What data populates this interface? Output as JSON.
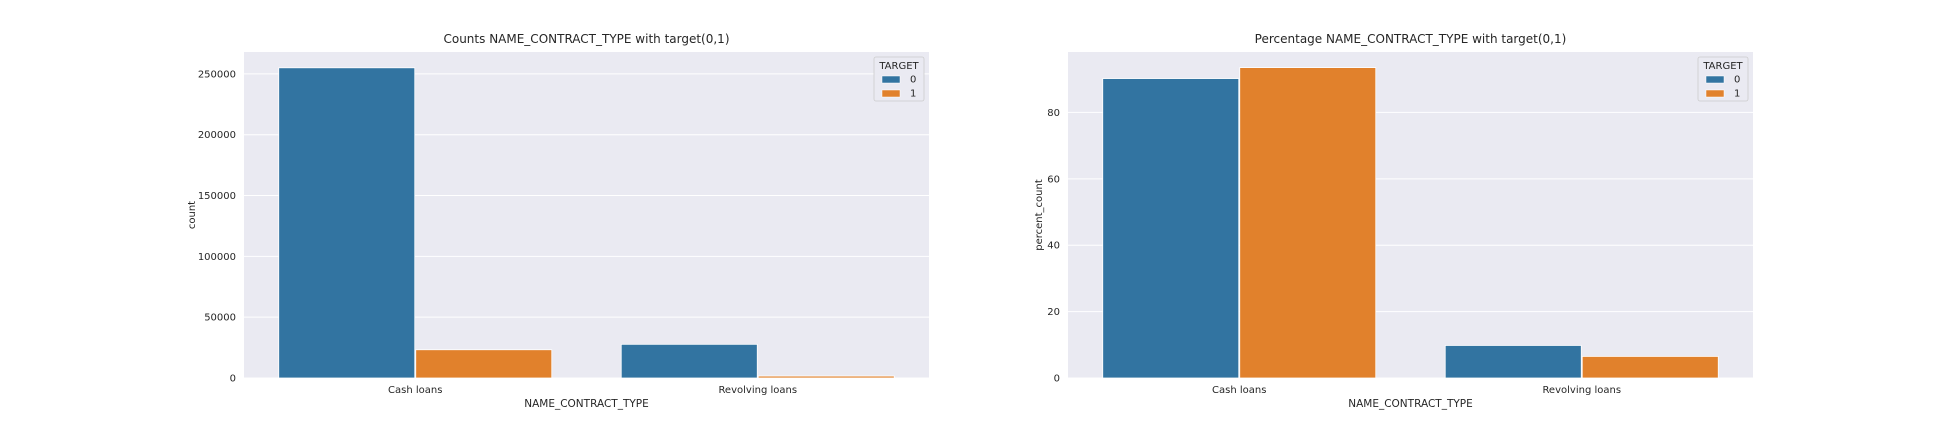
{
  "chart_data": [
    {
      "type": "bar",
      "title": "Counts NAME_CONTRACT_TYPE with target(0,1)",
      "xlabel": "NAME_CONTRACT_TYPE",
      "ylabel": "count",
      "categories": [
        "Cash loans",
        "Revolving loans"
      ],
      "series": [
        {
          "name": "0",
          "values": [
            255011,
            27675
          ],
          "color": "#3274a1"
        },
        {
          "name": "1",
          "values": [
            23221,
            1604
          ],
          "color": "#e1812c"
        }
      ],
      "ylim": [
        0,
        268000
      ],
      "yticks": [
        0,
        50000,
        100000,
        150000,
        200000,
        250000
      ],
      "grid": true,
      "legend": {
        "title": "TARGET",
        "placement": "top-right"
      }
    },
    {
      "type": "bar",
      "title": "Percentage NAME_CONTRACT_TYPE with target(0,1)",
      "xlabel": "NAME_CONTRACT_TYPE",
      "ylabel": "percent_count",
      "categories": [
        "Cash loans",
        "Revolving loans"
      ],
      "series": [
        {
          "name": "0",
          "values": [
            90.2,
            9.8
          ],
          "color": "#3274a1"
        },
        {
          "name": "1",
          "values": [
            93.5,
            6.5
          ],
          "color": "#e1812c"
        }
      ],
      "ylim": [
        0,
        98.2
      ],
      "yticks": [
        0,
        20,
        40,
        60,
        80
      ],
      "grid": true,
      "legend": {
        "title": "TARGET",
        "placement": "top-right"
      }
    }
  ]
}
